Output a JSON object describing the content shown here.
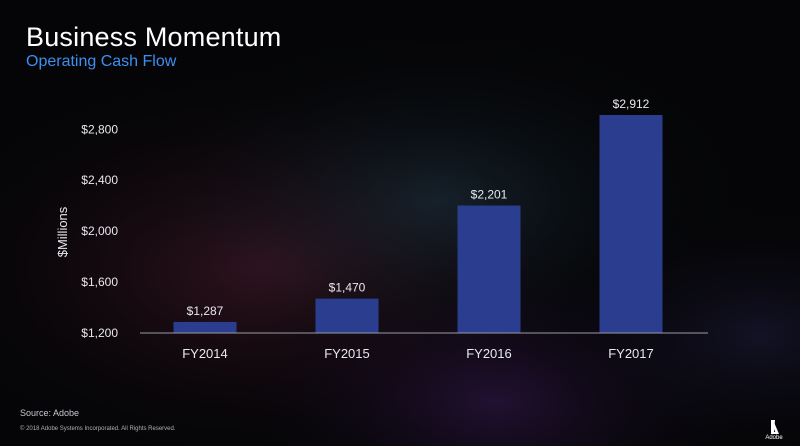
{
  "slide": {
    "title": "Business Momentum",
    "subtitle": "Operating Cash Flow",
    "source": "Source: Adobe",
    "copyright": "© 2018 Adobe Systems Incorporated.  All Rights Reserved.",
    "logo_text": "Adobe"
  },
  "colors": {
    "bar": "#2b3d8f",
    "axis": "#9a9aa6",
    "subtitle": "#3d8ff0",
    "text": "#e8e8ee"
  },
  "chart_data": {
    "type": "bar",
    "categories": [
      "FY2014",
      "FY2015",
      "FY2016",
      "FY2017"
    ],
    "values": [
      1287,
      1470,
      2201,
      2912
    ],
    "value_labels": [
      "$1,287",
      "$1,470",
      "$2,201",
      "$2,912"
    ],
    "ylabel": "$Millions",
    "ylim": [
      1200,
      2912
    ],
    "yticks": [
      1200,
      1600,
      2000,
      2400,
      2800
    ],
    "ytick_labels": [
      "$1,200",
      "$1,600",
      "$2,000",
      "$2,400",
      "$2,800"
    ],
    "grid": false,
    "legend": "none"
  }
}
